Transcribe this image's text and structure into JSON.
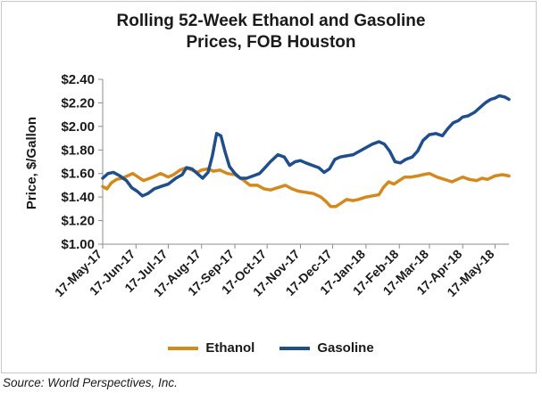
{
  "chart_data": {
    "type": "line",
    "title": "Rolling 52-Week Ethanol and Gasoline Prices, FOB Houston",
    "title_lines": [
      "Rolling 52-Week Ethanol and Gasoline",
      "Prices, FOB Houston"
    ],
    "ylabel": "Price, $/Gallon",
    "xlabel": "",
    "ylim": [
      1.0,
      2.4
    ],
    "y_ticks": [
      "$1.00",
      "$1.20",
      "$1.40",
      "$1.60",
      "$1.80",
      "$2.00",
      "$2.20",
      "$2.40"
    ],
    "y_tick_values": [
      1.0,
      1.2,
      1.4,
      1.6,
      1.8,
      2.0,
      2.2,
      2.4
    ],
    "x_tick_labels": [
      "17-May-17",
      "17-Jun-17",
      "17-Jul-17",
      "17-Aug-17",
      "17-Sep-17",
      "17-Oct-17",
      "17-Nov-17",
      "17-Dec-17",
      "17-Jan-18",
      "17-Feb-18",
      "17-Mar-18",
      "17-Apr-18",
      "17-May-18"
    ],
    "x_tick_dates": [
      "2017-05-17",
      "2017-06-17",
      "2017-07-17",
      "2017-08-17",
      "2017-09-17",
      "2017-10-17",
      "2017-11-17",
      "2017-12-17",
      "2018-01-17",
      "2018-02-17",
      "2018-03-17",
      "2018-04-17",
      "2018-05-17"
    ],
    "xlim": [
      "2017-05-17",
      "2018-05-30"
    ],
    "grid": false,
    "legend_position": "bottom",
    "series": [
      {
        "name": "Ethanol",
        "color": "#d4891c",
        "points": [
          [
            "2017-05-17",
            1.49
          ],
          [
            "2017-05-21",
            1.47
          ],
          [
            "2017-05-25",
            1.52
          ],
          [
            "2017-05-30",
            1.55
          ],
          [
            "2017-06-04",
            1.56
          ],
          [
            "2017-06-09",
            1.58
          ],
          [
            "2017-06-14",
            1.6
          ],
          [
            "2017-06-19",
            1.57
          ],
          [
            "2017-06-24",
            1.54
          ],
          [
            "2017-06-30",
            1.56
          ],
          [
            "2017-07-05",
            1.58
          ],
          [
            "2017-07-10",
            1.6
          ],
          [
            "2017-07-17",
            1.57
          ],
          [
            "2017-07-22",
            1.59
          ],
          [
            "2017-07-28",
            1.63
          ],
          [
            "2017-08-03",
            1.65
          ],
          [
            "2017-08-08",
            1.63
          ],
          [
            "2017-08-13",
            1.61
          ],
          [
            "2017-08-17",
            1.63
          ],
          [
            "2017-08-23",
            1.64
          ],
          [
            "2017-08-28",
            1.62
          ],
          [
            "2017-09-03",
            1.63
          ],
          [
            "2017-09-10",
            1.6
          ],
          [
            "2017-09-17",
            1.59
          ],
          [
            "2017-09-24",
            1.55
          ],
          [
            "2017-10-01",
            1.5
          ],
          [
            "2017-10-08",
            1.5
          ],
          [
            "2017-10-14",
            1.47
          ],
          [
            "2017-10-20",
            1.46
          ],
          [
            "2017-10-27",
            1.48
          ],
          [
            "2017-11-03",
            1.5
          ],
          [
            "2017-11-09",
            1.47
          ],
          [
            "2017-11-15",
            1.45
          ],
          [
            "2017-11-22",
            1.44
          ],
          [
            "2017-11-29",
            1.43
          ],
          [
            "2017-12-06",
            1.4
          ],
          [
            "2017-12-11",
            1.36
          ],
          [
            "2017-12-15",
            1.32
          ],
          [
            "2017-12-20",
            1.32
          ],
          [
            "2017-12-25",
            1.35
          ],
          [
            "2017-12-30",
            1.38
          ],
          [
            "2018-01-05",
            1.37
          ],
          [
            "2018-01-10",
            1.38
          ],
          [
            "2018-01-17",
            1.4
          ],
          [
            "2018-01-23",
            1.41
          ],
          [
            "2018-01-29",
            1.42
          ],
          [
            "2018-02-02",
            1.48
          ],
          [
            "2018-02-07",
            1.53
          ],
          [
            "2018-02-12",
            1.51
          ],
          [
            "2018-02-17",
            1.54
          ],
          [
            "2018-02-22",
            1.57
          ],
          [
            "2018-02-28",
            1.57
          ],
          [
            "2018-03-06",
            1.58
          ],
          [
            "2018-03-11",
            1.59
          ],
          [
            "2018-03-17",
            1.6
          ],
          [
            "2018-03-24",
            1.57
          ],
          [
            "2018-03-31",
            1.55
          ],
          [
            "2018-04-07",
            1.53
          ],
          [
            "2018-04-12",
            1.55
          ],
          [
            "2018-04-17",
            1.57
          ],
          [
            "2018-04-23",
            1.55
          ],
          [
            "2018-04-30",
            1.54
          ],
          [
            "2018-05-05",
            1.56
          ],
          [
            "2018-05-10",
            1.55
          ],
          [
            "2018-05-17",
            1.58
          ],
          [
            "2018-05-24",
            1.59
          ],
          [
            "2018-05-30",
            1.58
          ]
        ]
      },
      {
        "name": "Gasoline",
        "color": "#1f4e8c",
        "points": [
          [
            "2017-05-17",
            1.56
          ],
          [
            "2017-05-22",
            1.6
          ],
          [
            "2017-05-27",
            1.61
          ],
          [
            "2017-06-02",
            1.58
          ],
          [
            "2017-06-08",
            1.54
          ],
          [
            "2017-06-13",
            1.48
          ],
          [
            "2017-06-18",
            1.45
          ],
          [
            "2017-06-23",
            1.41
          ],
          [
            "2017-06-28",
            1.43
          ],
          [
            "2017-07-04",
            1.47
          ],
          [
            "2017-07-10",
            1.49
          ],
          [
            "2017-07-17",
            1.51
          ],
          [
            "2017-07-24",
            1.56
          ],
          [
            "2017-07-30",
            1.59
          ],
          [
            "2017-08-03",
            1.65
          ],
          [
            "2017-08-08",
            1.64
          ],
          [
            "2017-08-13",
            1.6
          ],
          [
            "2017-08-18",
            1.56
          ],
          [
            "2017-08-23",
            1.61
          ],
          [
            "2017-08-27",
            1.75
          ],
          [
            "2017-08-31",
            1.94
          ],
          [
            "2017-09-04",
            1.92
          ],
          [
            "2017-09-08",
            1.78
          ],
          [
            "2017-09-12",
            1.66
          ],
          [
            "2017-09-17",
            1.6
          ],
          [
            "2017-09-22",
            1.56
          ],
          [
            "2017-09-28",
            1.56
          ],
          [
            "2017-10-04",
            1.58
          ],
          [
            "2017-10-10",
            1.6
          ],
          [
            "2017-10-14",
            1.64
          ],
          [
            "2017-10-20",
            1.7
          ],
          [
            "2017-10-27",
            1.76
          ],
          [
            "2017-11-02",
            1.74
          ],
          [
            "2017-11-07",
            1.67
          ],
          [
            "2017-11-12",
            1.7
          ],
          [
            "2017-11-17",
            1.71
          ],
          [
            "2017-11-22",
            1.69
          ],
          [
            "2017-11-28",
            1.67
          ],
          [
            "2017-12-04",
            1.65
          ],
          [
            "2017-12-09",
            1.61
          ],
          [
            "2017-12-14",
            1.64
          ],
          [
            "2017-12-19",
            1.72
          ],
          [
            "2017-12-24",
            1.74
          ],
          [
            "2017-12-30",
            1.75
          ],
          [
            "2018-01-05",
            1.76
          ],
          [
            "2018-01-11",
            1.79
          ],
          [
            "2018-01-17",
            1.82
          ],
          [
            "2018-01-23",
            1.85
          ],
          [
            "2018-01-29",
            1.87
          ],
          [
            "2018-02-03",
            1.85
          ],
          [
            "2018-02-08",
            1.79
          ],
          [
            "2018-02-13",
            1.7
          ],
          [
            "2018-02-18",
            1.69
          ],
          [
            "2018-02-23",
            1.72
          ],
          [
            "2018-03-01",
            1.74
          ],
          [
            "2018-03-06",
            1.79
          ],
          [
            "2018-03-11",
            1.88
          ],
          [
            "2018-03-17",
            1.93
          ],
          [
            "2018-03-23",
            1.94
          ],
          [
            "2018-03-29",
            1.92
          ],
          [
            "2018-04-03",
            1.98
          ],
          [
            "2018-04-08",
            2.03
          ],
          [
            "2018-04-13",
            2.05
          ],
          [
            "2018-04-17",
            2.08
          ],
          [
            "2018-04-22",
            2.09
          ],
          [
            "2018-04-28",
            2.12
          ],
          [
            "2018-05-03",
            2.16
          ],
          [
            "2018-05-08",
            2.2
          ],
          [
            "2018-05-13",
            2.23
          ],
          [
            "2018-05-17",
            2.24
          ],
          [
            "2018-05-21",
            2.26
          ],
          [
            "2018-05-26",
            2.25
          ],
          [
            "2018-05-30",
            2.23
          ]
        ]
      }
    ]
  },
  "source": "Source: World Perspectives, Inc."
}
